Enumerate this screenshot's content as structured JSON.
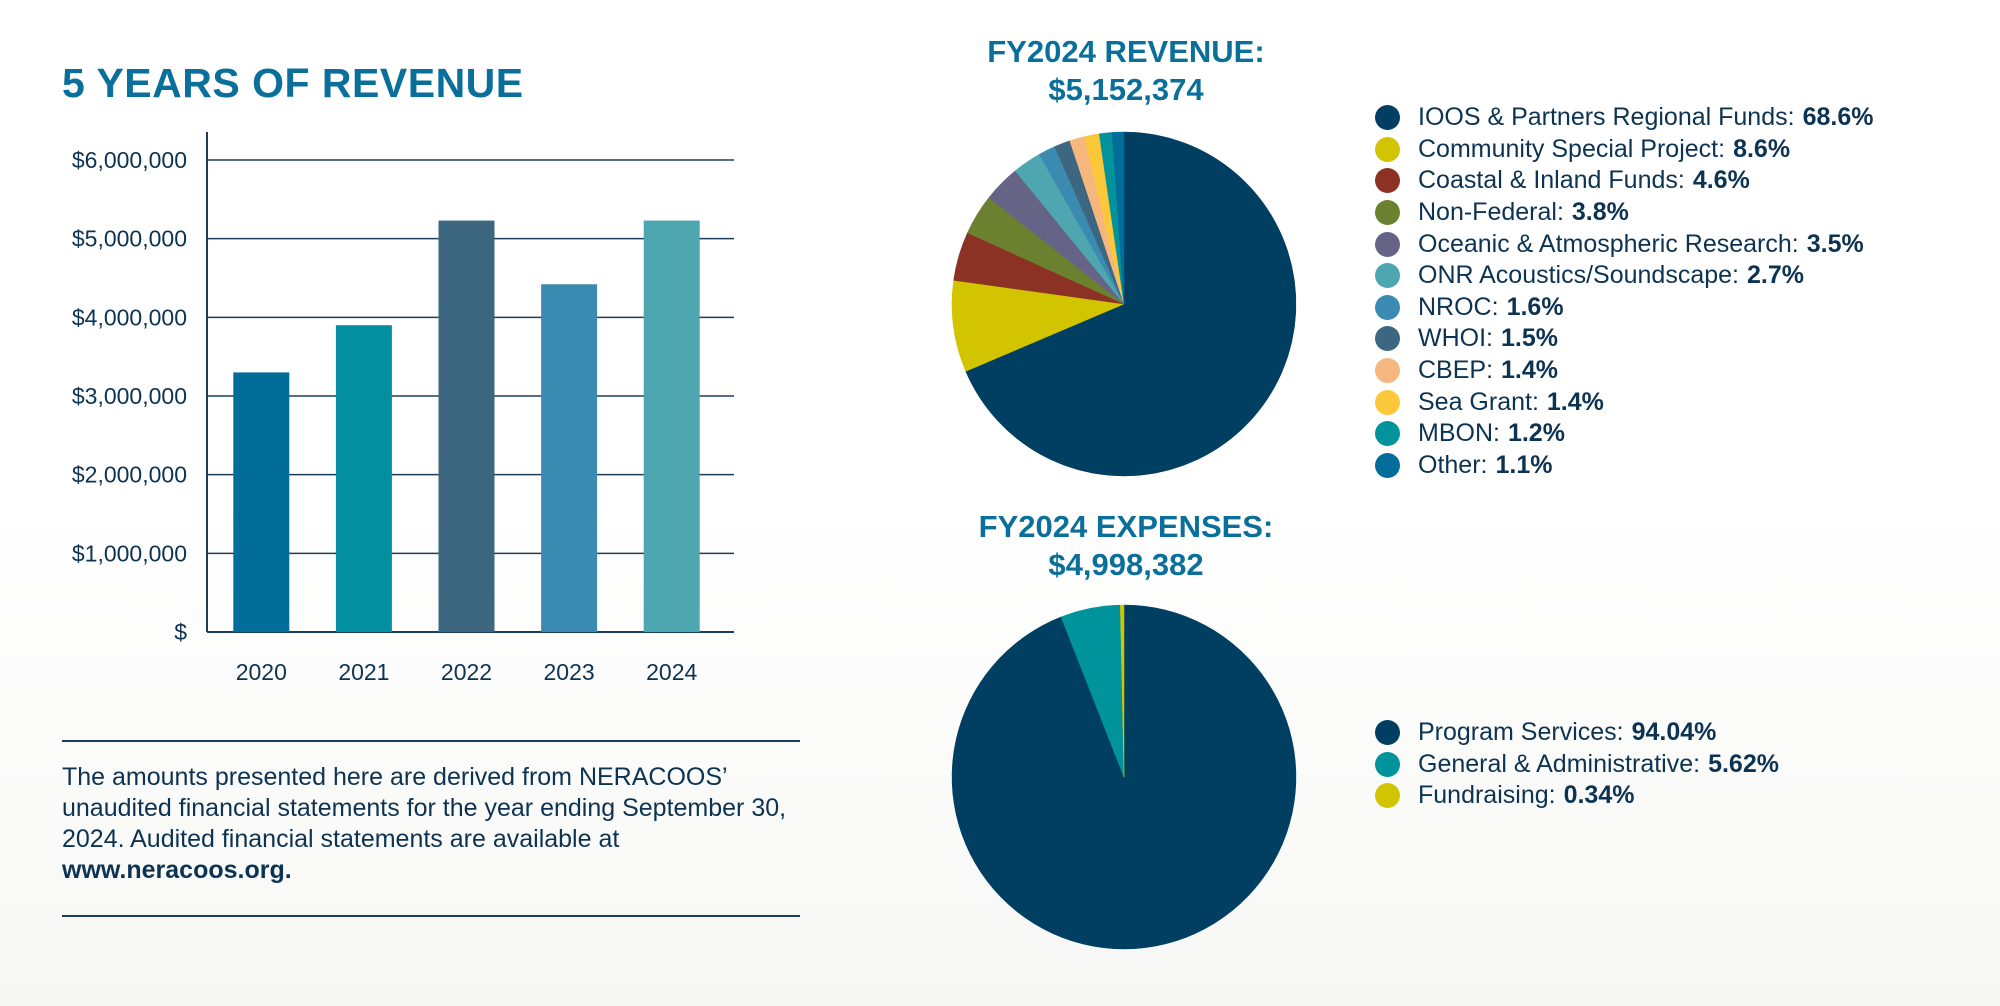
{
  "colors": {
    "title": "#0a6f9a",
    "text": "#0d3352",
    "axis": "#1d3d5a"
  },
  "chart_data": [
    {
      "type": "bar",
      "title": "5 YEARS OF REVENUE",
      "categories": [
        "2020",
        "2021",
        "2022",
        "2023",
        "2024"
      ],
      "values": [
        3300000,
        3900000,
        5230000,
        4420000,
        5230000
      ],
      "bar_colors": [
        "#036d99",
        "#028fa0",
        "#3d6680",
        "#3b8ab1",
        "#4ea6b1"
      ],
      "ylim": [
        0,
        6000000
      ],
      "ytick_values": [
        0,
        1000000,
        2000000,
        3000000,
        4000000,
        5000000,
        6000000
      ],
      "ytick_labels": [
        "$",
        "$1,000,000",
        "$2,000,000",
        "$3,000,000",
        "$4,000,000",
        "$5,000,000",
        "$6,000,000"
      ],
      "grid": true,
      "xlabel": "",
      "ylabel": ""
    },
    {
      "type": "pie",
      "title": "FY2024 REVENUE:",
      "subtitle": "$5,152,374",
      "slices": [
        {
          "label": "IOOS & Partners Regional Funds:",
          "pct_text": "68.6%",
          "value": 68.6,
          "color": "#003f62"
        },
        {
          "label": "Community Special Project:",
          "pct_text": "8.6%",
          "value": 8.6,
          "color": "#d2c500"
        },
        {
          "label": "Coastal & Inland Funds:",
          "pct_text": "4.6%",
          "value": 4.6,
          "color": "#8b3224"
        },
        {
          "label": "Non-Federal:",
          "pct_text": "3.8%",
          "value": 3.8,
          "color": "#6c8130"
        },
        {
          "label": "Oceanic & Atmospheric Research:",
          "pct_text": "3.5%",
          "value": 3.5,
          "color": "#666486"
        },
        {
          "label": "ONR Acoustics/Soundscape:",
          "pct_text": "2.7%",
          "value": 2.7,
          "color": "#4ea6b1"
        },
        {
          "label": "NROC:",
          "pct_text": "1.6%",
          "value": 1.6,
          "color": "#3b8ab1"
        },
        {
          "label": "WHOI:",
          "pct_text": "1.5%",
          "value": 1.5,
          "color": "#3d6680"
        },
        {
          "label": "CBEP:",
          "pct_text": "1.4%",
          "value": 1.4,
          "color": "#f6b77e"
        },
        {
          "label": "Sea Grant:",
          "pct_text": "1.4%",
          "value": 1.4,
          "color": "#fcc83a"
        },
        {
          "label": "MBON:",
          "pct_text": "1.2%",
          "value": 1.2,
          "color": "#00939b"
        },
        {
          "label": "Other:",
          "pct_text": "1.1%",
          "value": 1.1,
          "color": "#036d99"
        }
      ]
    },
    {
      "type": "pie",
      "title": "FY2024 EXPENSES:",
      "subtitle": "$4,998,382",
      "slices": [
        {
          "label": "Program Services:",
          "pct_text": "94.04%",
          "value": 94.04,
          "color": "#003f62"
        },
        {
          "label": "General & Administrative:",
          "pct_text": "5.62%",
          "value": 5.62,
          "color": "#00939b"
        },
        {
          "label": "Fundraising:",
          "pct_text": "0.34%",
          "value": 0.34,
          "color": "#d2c500"
        }
      ]
    }
  ],
  "footnote": {
    "text": "The amounts presented here are derived from NERACOOS’ unaudited financial statements for the year ending September 30, 2024. Audited financial statements are available at",
    "link": "www.neracoos.org."
  }
}
